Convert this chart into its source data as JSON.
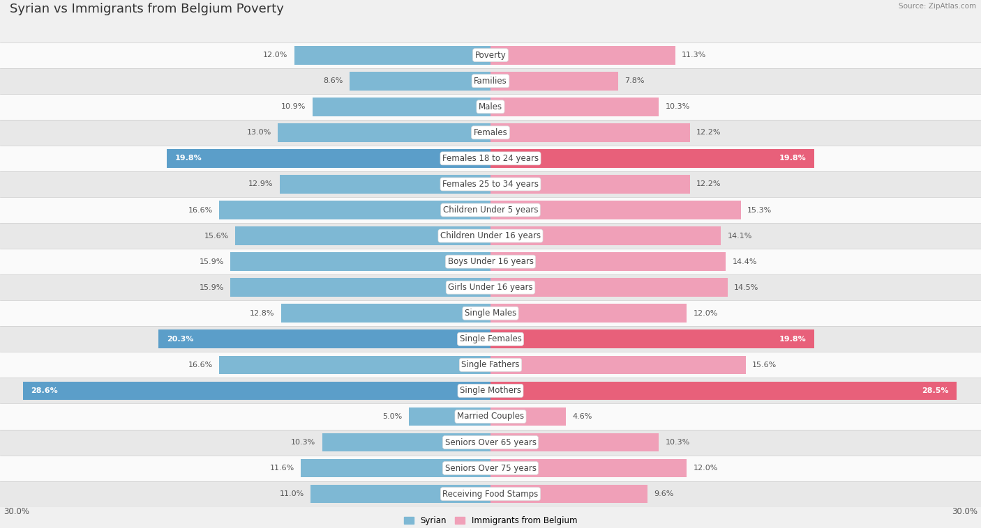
{
  "title": "Syrian vs Immigrants from Belgium Poverty",
  "source": "Source: ZipAtlas.com",
  "categories": [
    "Poverty",
    "Families",
    "Males",
    "Females",
    "Females 18 to 24 years",
    "Females 25 to 34 years",
    "Children Under 5 years",
    "Children Under 16 years",
    "Boys Under 16 years",
    "Girls Under 16 years",
    "Single Males",
    "Single Females",
    "Single Fathers",
    "Single Mothers",
    "Married Couples",
    "Seniors Over 65 years",
    "Seniors Over 75 years",
    "Receiving Food Stamps"
  ],
  "syrian_values": [
    12.0,
    8.6,
    10.9,
    13.0,
    19.8,
    12.9,
    16.6,
    15.6,
    15.9,
    15.9,
    12.8,
    20.3,
    16.6,
    28.6,
    5.0,
    10.3,
    11.6,
    11.0
  ],
  "belgium_values": [
    11.3,
    7.8,
    10.3,
    12.2,
    19.8,
    12.2,
    15.3,
    14.1,
    14.4,
    14.5,
    12.0,
    19.8,
    15.6,
    28.5,
    4.6,
    10.3,
    12.0,
    9.6
  ],
  "syrian_color": "#7EB8D4",
  "belgium_color": "#F0A0B8",
  "syrian_color_bold": "#5B9EC9",
  "belgium_color_bold": "#E8607A",
  "axis_max": 30.0,
  "background_color": "#F0F0F0",
  "row_bg_light": "#FAFAFA",
  "row_bg_dark": "#E8E8E8",
  "legend_syrian": "Syrian",
  "legend_belgium": "Immigrants from Belgium",
  "title_fontsize": 13,
  "label_fontsize": 8.5,
  "value_fontsize": 8.0,
  "bold_threshold": 19.0
}
